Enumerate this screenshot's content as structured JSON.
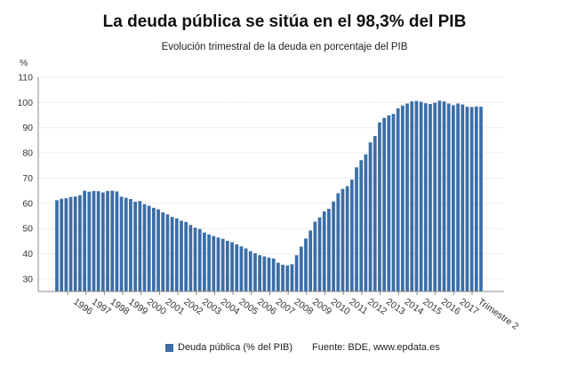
{
  "title": "La deuda pública se sitúa en el 98,3% del PIB",
  "subtitle": "Evolución trimestral de la deuda en porcentaje del PIB",
  "source": "Fuente: BDE, www.epdata.es",
  "colors": {
    "bar": "#3b6ea8",
    "grid": "#cfcfcf",
    "axis": "#888888",
    "text": "#333333"
  },
  "chart_data": {
    "type": "bar",
    "ylabel": "%",
    "ylim": [
      25,
      110
    ],
    "yticks": [
      30,
      40,
      50,
      60,
      70,
      80,
      90,
      100,
      110
    ],
    "grid": true,
    "legend": "bottom",
    "x_tick_labels": [
      "1996",
      "1997",
      "1998",
      "1999",
      "2000",
      "2001",
      "2002",
      "2003",
      "2004",
      "2005",
      "2006",
      "2007",
      "2008",
      "2009",
      "2010",
      "2011",
      "2012",
      "2013",
      "2014",
      "2015",
      "2016",
      "2017",
      "Trimestre 2"
    ],
    "series": [
      {
        "name": "Deuda pública (% del PIB)",
        "values": [
          61.2,
          61.8,
          62.0,
          62.5,
          62.7,
          63.2,
          65.0,
          64.6,
          64.9,
          64.8,
          64.3,
          64.9,
          65.0,
          64.7,
          62.6,
          62.2,
          61.7,
          60.6,
          60.9,
          59.6,
          59.0,
          58.2,
          57.6,
          56.4,
          55.6,
          54.6,
          54.0,
          53.1,
          52.6,
          51.4,
          50.3,
          49.8,
          48.4,
          47.6,
          47.0,
          46.4,
          45.9,
          45.1,
          44.6,
          43.7,
          42.9,
          42.1,
          41.0,
          40.2,
          39.4,
          38.9,
          38.4,
          38.1,
          36.4,
          35.6,
          35.3,
          35.8,
          39.4,
          42.8,
          46.0,
          49.2,
          52.7,
          54.4,
          56.8,
          57.8,
          60.7,
          64.0,
          65.7,
          66.8,
          69.4,
          74.3,
          77.1,
          79.4,
          84.2,
          86.7,
          92.1,
          93.9,
          94.9,
          95.5,
          97.7,
          98.8,
          99.6,
          100.4,
          100.6,
          100.3,
          99.7,
          99.4,
          99.9,
          100.7,
          100.4,
          99.6,
          98.9,
          99.6,
          99.2,
          98.3,
          98.2,
          98.4,
          98.3
        ]
      }
    ]
  }
}
